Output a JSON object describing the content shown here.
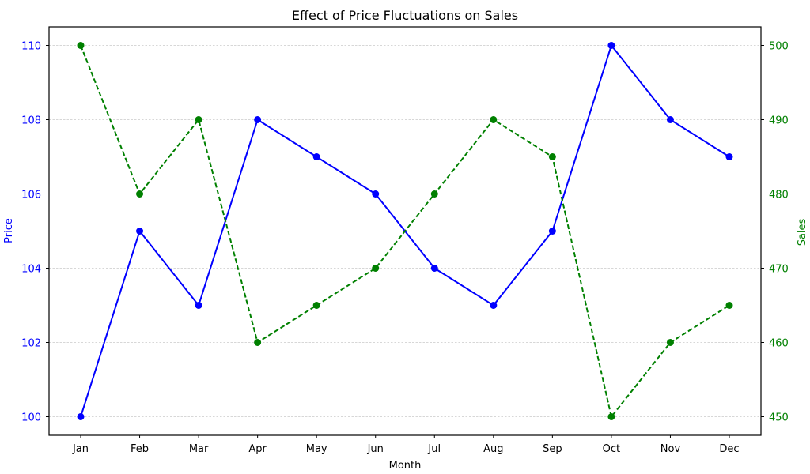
{
  "chart_data": {
    "type": "line",
    "title": "Effect of Price Fluctuations on Sales",
    "xlabel": "Month",
    "categories": [
      "Jan",
      "Feb",
      "Mar",
      "Apr",
      "May",
      "Jun",
      "Jul",
      "Aug",
      "Sep",
      "Oct",
      "Nov",
      "Dec"
    ],
    "y_left": {
      "label": "Price",
      "color": "#0000ff",
      "ylim": [
        99.5,
        110.5
      ],
      "ticks": [
        100,
        102,
        104,
        106,
        108,
        110
      ]
    },
    "y_right": {
      "label": "Sales",
      "color": "#008000",
      "ylim": [
        447.5,
        502.5
      ],
      "ticks": [
        450,
        460,
        470,
        480,
        490,
        500
      ]
    },
    "series": [
      {
        "axis": "left",
        "color": "#0000ff",
        "line_style": "solid",
        "marker": "circle",
        "values": [
          100,
          105,
          103,
          108,
          107,
          106,
          104,
          103,
          105,
          110,
          108,
          107
        ]
      },
      {
        "axis": "right",
        "color": "#008000",
        "line_style": "dashed",
        "marker": "circle",
        "values": [
          500,
          480,
          490,
          460,
          465,
          470,
          480,
          490,
          485,
          450,
          460,
          465
        ]
      }
    ],
    "grid": "horizontal"
  }
}
